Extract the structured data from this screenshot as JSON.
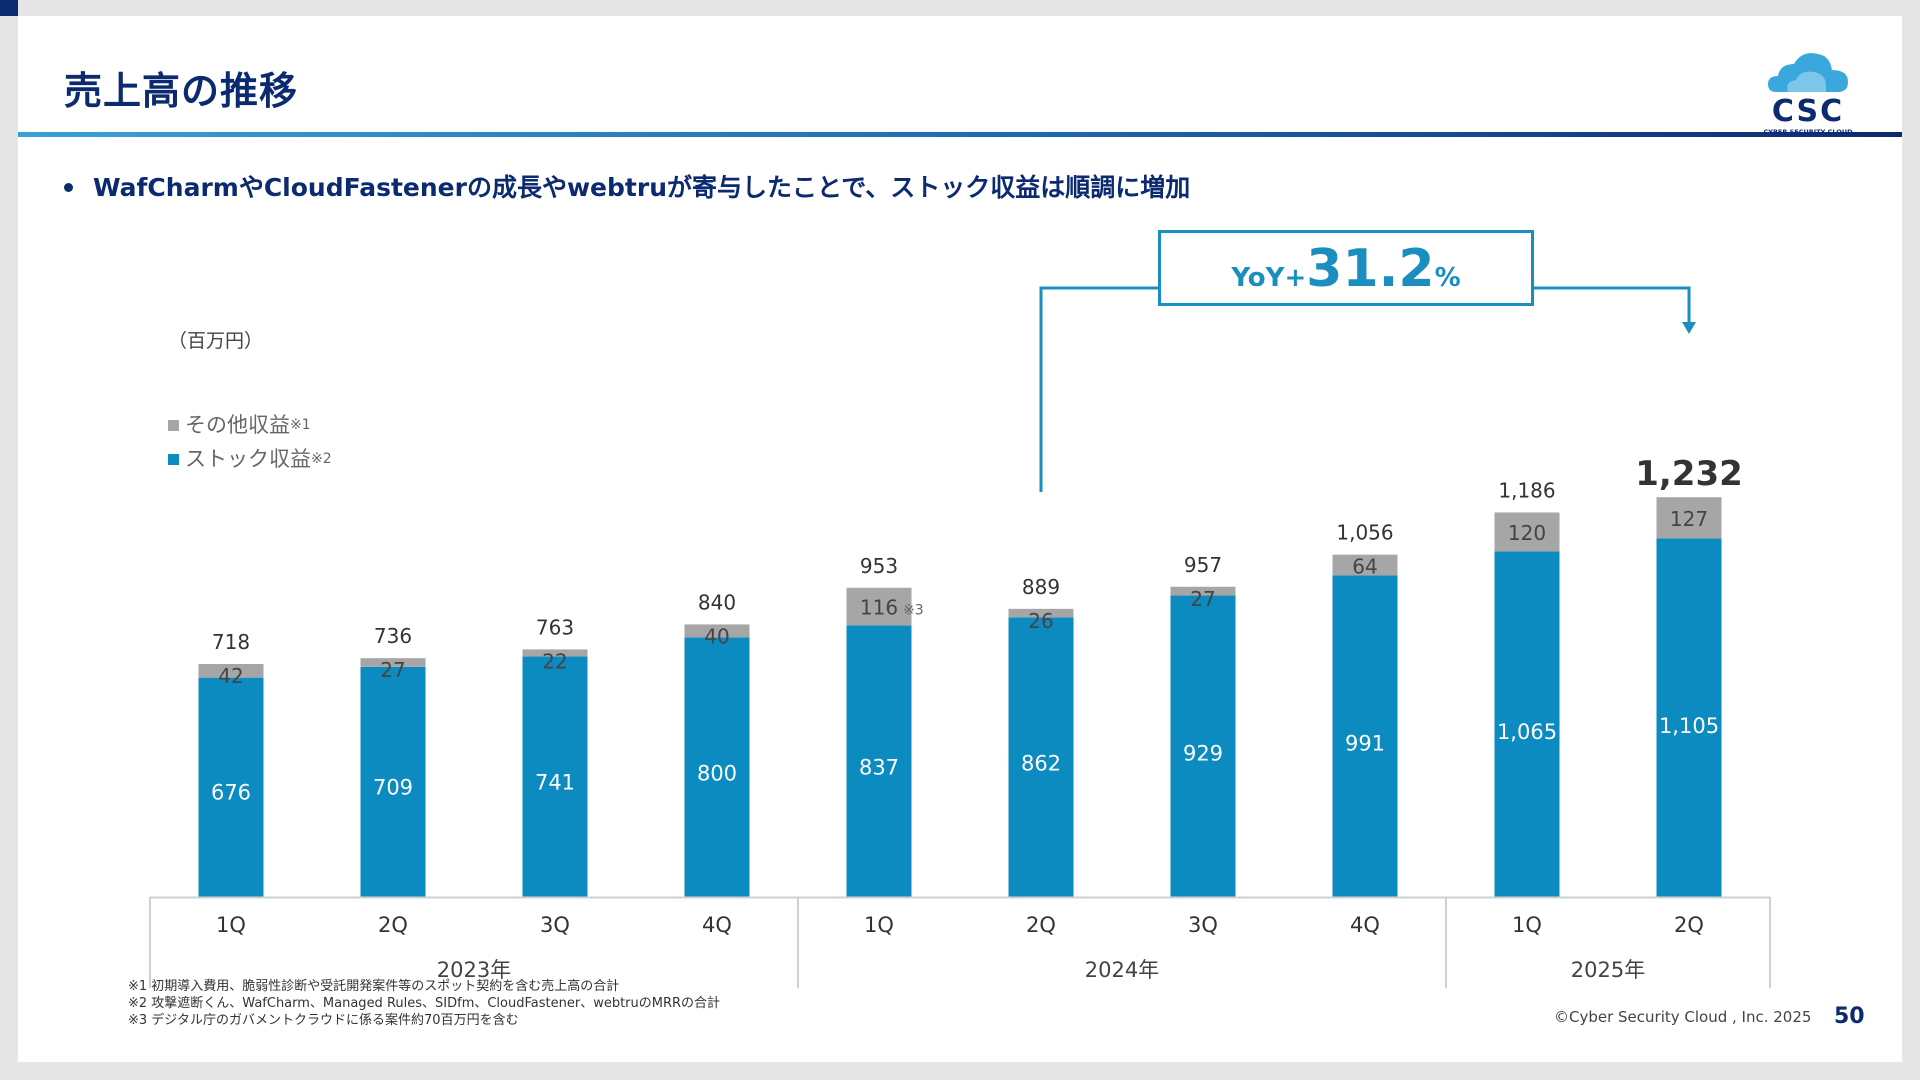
{
  "slide": {
    "title": "売上高の推移",
    "bullet": "WafCharmやCloudFastenerの成長やwebtruが寄与したことで、ストック収益は順調に増加",
    "unit": "（百万円）",
    "legend": [
      {
        "label": "その他収益",
        "note": "※1",
        "color": "#a6a6a6"
      },
      {
        "label": "ストック収益",
        "note": "※2",
        "color": "#0b8bbf"
      }
    ],
    "yoy": {
      "prefix": "YoY+",
      "value": "31.2",
      "suffix": "%"
    },
    "footnotes": [
      "※1 初期導入費用、脆弱性診断や受託開発案件等のスポット契約を含む売上高の合計",
      "※2 攻撃遮断くん、WafCharm、Managed Rules、SIDfm、CloudFastener、webtruのMRRの合計",
      "※3 デジタル庁のガバメントクラウドに係る案件約70百万円を含む"
    ],
    "copyright": "©Cyber Security Cloud , Inc. 2025",
    "page_number": "50",
    "logo": {
      "text": "CSC",
      "subtitle": "CYBER SECURITY CLOUD",
      "icon": "cloud-logo-icon"
    }
  },
  "chart_data": {
    "type": "bar",
    "stacked": true,
    "categories": [
      "1Q",
      "2Q",
      "3Q",
      "4Q",
      "1Q",
      "2Q",
      "3Q",
      "4Q",
      "1Q",
      "2Q"
    ],
    "groups": [
      {
        "label": "2023年",
        "count": 4
      },
      {
        "label": "2024年",
        "count": 4
      },
      {
        "label": "2025年",
        "count": 2
      }
    ],
    "series": [
      {
        "name": "ストック収益",
        "color": "#0b8bbf",
        "values": [
          676,
          709,
          741,
          800,
          837,
          862,
          929,
          991,
          1065,
          1105
        ]
      },
      {
        "name": "その他収益",
        "color": "#a6a6a6",
        "values": [
          42,
          27,
          22,
          40,
          116,
          26,
          27,
          64,
          120,
          127
        ]
      }
    ],
    "totals": [
      718,
      736,
      763,
      840,
      953,
      889,
      957,
      1056,
      1186,
      1232
    ],
    "annotations": {
      "other_note_index": 4,
      "other_note": "※3",
      "highlight_total_index": 9
    },
    "ylim": [
      0,
      1300
    ]
  }
}
